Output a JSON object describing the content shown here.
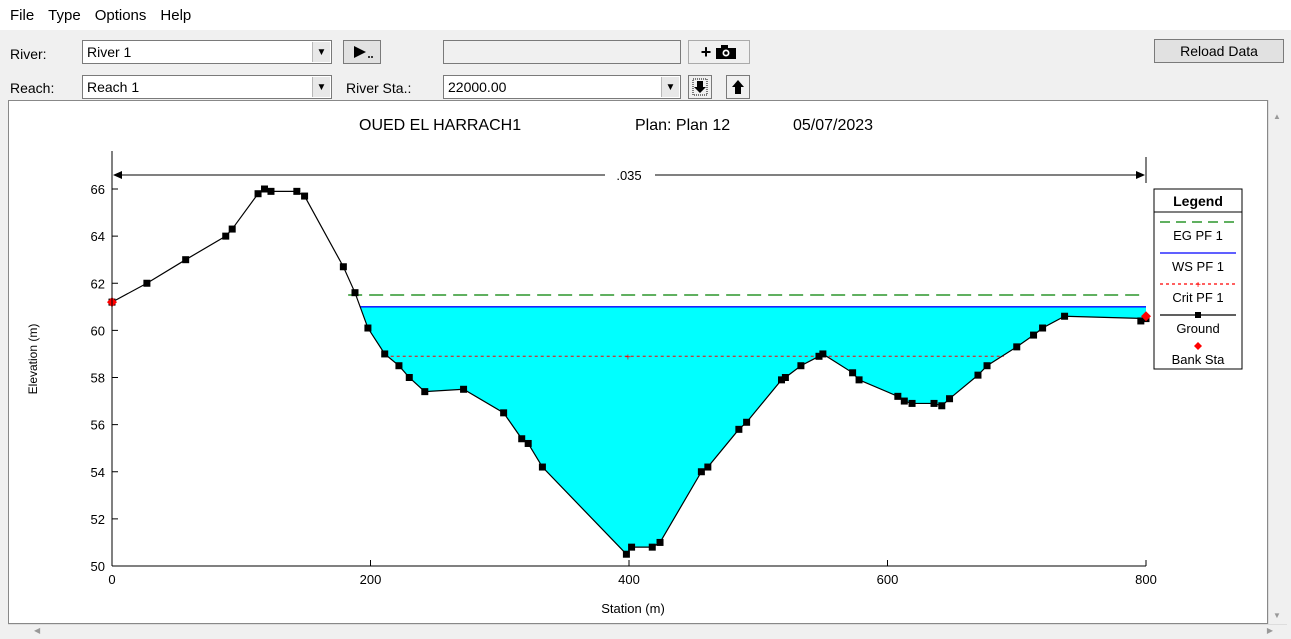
{
  "menu": [
    "File",
    "Type",
    "Options",
    "Help"
  ],
  "toolbar": {
    "river_label": "River:",
    "river_value": "River 1",
    "reach_label": "Reach:",
    "reach_value": "Reach 1",
    "river_sta_label": "River Sta.:",
    "river_sta_value": "22000.00",
    "reload_label": "Reload Data",
    "add_label": "+"
  },
  "colors": {
    "water": "#00ffff",
    "ground": "#000000",
    "eg": "#008000",
    "ws": "#0000ff",
    "crit": "#ff0000",
    "bank": "#ff0000"
  },
  "chart_data": {
    "type": "line",
    "title": "OUED EL HARRACH1",
    "plan": "Plan: Plan 12",
    "date": "05/07/2023",
    "xlabel": "Station (m)",
    "ylabel": "Elevation (m)",
    "xlim": [
      0,
      800
    ],
    "ylim": [
      50,
      67
    ],
    "xticks": [
      0,
      200,
      400,
      600,
      800
    ],
    "yticks": [
      50,
      52,
      54,
      56,
      58,
      60,
      62,
      64,
      66
    ],
    "manning_label": ".035",
    "legend": {
      "title": "Legend",
      "items": [
        "EG PF 1",
        "WS PF 1",
        "Crit PF 1",
        "Ground",
        "Bank Sta"
      ]
    },
    "ground": {
      "x": [
        0,
        27,
        57,
        88,
        93,
        113,
        118,
        123,
        143,
        149,
        179,
        188,
        198,
        211,
        222,
        230,
        242,
        272,
        303,
        317,
        322,
        333,
        398,
        402,
        418,
        424,
        456,
        461,
        485,
        491,
        518,
        521,
        533,
        547,
        550,
        573,
        578,
        608,
        613,
        619,
        636,
        642,
        648,
        670,
        677,
        700,
        713,
        720,
        737,
        800
      ],
      "y": [
        61.2,
        62.0,
        63.0,
        64.0,
        64.3,
        65.8,
        66.0,
        65.9,
        65.9,
        65.7,
        62.7,
        61.6,
        60.1,
        59.0,
        58.5,
        58.0,
        57.4,
        57.5,
        56.5,
        55.4,
        55.2,
        54.2,
        50.5,
        50.8,
        50.8,
        51.0,
        54.0,
        54.2,
        55.8,
        56.1,
        57.9,
        58.0,
        58.5,
        58.9,
        59.0,
        58.2,
        57.9,
        57.2,
        57.0,
        56.9,
        56.9,
        56.8,
        57.1,
        58.1,
        58.5,
        59.3,
        59.8,
        60.1,
        60.6,
        60.5
      ]
    },
    "extra_ground": {
      "x": [
        796,
        800
      ],
      "y": [
        60.4,
        60.6
      ]
    },
    "bank_stations": [
      {
        "x": 0,
        "y": 61.2
      },
      {
        "x": 800,
        "y": 60.6
      }
    ],
    "eg_elevation": 61.5,
    "ws_elevation": 61.0,
    "crit_elevation": 58.9,
    "crit_x_range": [
      211,
      690
    ]
  }
}
